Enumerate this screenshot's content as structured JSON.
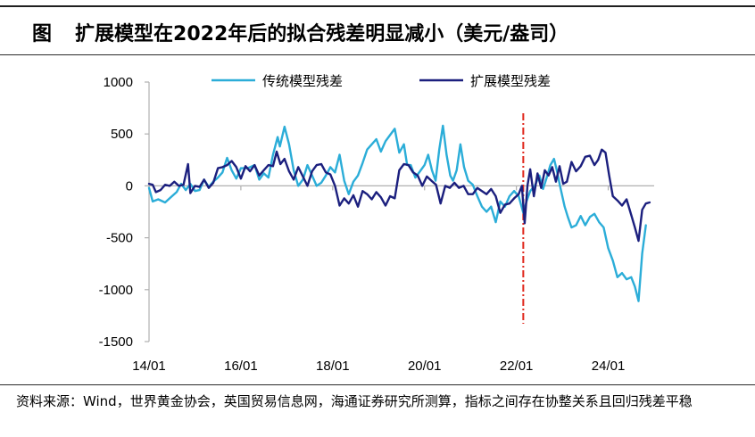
{
  "header": {
    "figure_label": "图",
    "title": "扩展模型在2022年后的拟合残差明显减小（美元/盎司）"
  },
  "footer": {
    "source": "资料来源：Wind，世界黄金协会，英国贸易信息网，海通证券研究所测算，指标之间存在协整关系且回归残差平稳"
  },
  "chart_data": {
    "type": "line",
    "title": "扩展模型在2022年后的拟合残差明显减小（美元/盎司）",
    "xlabel": "",
    "ylabel": "",
    "ylim": [
      -1500,
      1000
    ],
    "yticks": [
      1000,
      500,
      0,
      -500,
      -1000,
      -1500
    ],
    "xlim": [
      2014.0,
      2025.0
    ],
    "xticks": [
      {
        "x": 2014.0,
        "label": "14/01"
      },
      {
        "x": 2016.0,
        "label": "16/01"
      },
      {
        "x": 2018.0,
        "label": "18/01"
      },
      {
        "x": 2020.0,
        "label": "20/01"
      },
      {
        "x": 2022.0,
        "label": "22/01"
      },
      {
        "x": 2024.0,
        "label": "24/01"
      }
    ],
    "grid": false,
    "legend": "top",
    "reference_line": {
      "x": 2022.15,
      "style": "dash-dot",
      "color": "#e0261b"
    },
    "series": [
      {
        "name": "传统模型残差",
        "color": "#2badd8",
        "points": [
          [
            2014.0,
            -20
          ],
          [
            2014.08,
            -150
          ],
          [
            2014.2,
            -130
          ],
          [
            2014.35,
            -160
          ],
          [
            2014.5,
            -100
          ],
          [
            2014.6,
            -60
          ],
          [
            2014.7,
            20
          ],
          [
            2014.8,
            -40
          ],
          [
            2014.9,
            20
          ],
          [
            2015.0,
            -50
          ],
          [
            2015.1,
            -40
          ],
          [
            2015.2,
            60
          ],
          [
            2015.3,
            -10
          ],
          [
            2015.4,
            40
          ],
          [
            2015.5,
            80
          ],
          [
            2015.6,
            130
          ],
          [
            2015.7,
            270
          ],
          [
            2015.8,
            150
          ],
          [
            2015.9,
            70
          ],
          [
            2016.0,
            170
          ],
          [
            2016.15,
            170
          ],
          [
            2016.3,
            200
          ],
          [
            2016.4,
            60
          ],
          [
            2016.5,
            120
          ],
          [
            2016.6,
            80
          ],
          [
            2016.7,
            300
          ],
          [
            2016.8,
            470
          ],
          [
            2016.85,
            380
          ],
          [
            2016.95,
            570
          ],
          [
            2017.05,
            400
          ],
          [
            2017.15,
            150
          ],
          [
            2017.25,
            0
          ],
          [
            2017.35,
            60
          ],
          [
            2017.45,
            200
          ],
          [
            2017.55,
            100
          ],
          [
            2017.65,
            0
          ],
          [
            2017.75,
            30
          ],
          [
            2017.85,
            100
          ],
          [
            2017.95,
            180
          ],
          [
            2018.05,
            130
          ],
          [
            2018.15,
            300
          ],
          [
            2018.25,
            50
          ],
          [
            2018.35,
            -80
          ],
          [
            2018.45,
            40
          ],
          [
            2018.55,
            100
          ],
          [
            2018.65,
            220
          ],
          [
            2018.75,
            350
          ],
          [
            2018.85,
            400
          ],
          [
            2018.95,
            450
          ],
          [
            2019.05,
            330
          ],
          [
            2019.15,
            430
          ],
          [
            2019.25,
            490
          ],
          [
            2019.35,
            550
          ],
          [
            2019.45,
            320
          ],
          [
            2019.55,
            400
          ],
          [
            2019.62,
            200
          ],
          [
            2019.7,
            200
          ],
          [
            2019.8,
            80
          ],
          [
            2019.9,
            140
          ],
          [
            2020.0,
            200
          ],
          [
            2020.08,
            300
          ],
          [
            2020.16,
            150
          ],
          [
            2020.24,
            50
          ],
          [
            2020.32,
            350
          ],
          [
            2020.4,
            580
          ],
          [
            2020.48,
            300
          ],
          [
            2020.56,
            100
          ],
          [
            2020.62,
            50
          ],
          [
            2020.7,
            150
          ],
          [
            2020.78,
            400
          ],
          [
            2020.86,
            180
          ],
          [
            2020.95,
            50
          ],
          [
            2021.05,
            10
          ],
          [
            2021.15,
            -100
          ],
          [
            2021.25,
            -200
          ],
          [
            2021.35,
            -250
          ],
          [
            2021.45,
            -200
          ],
          [
            2021.55,
            -350
          ],
          [
            2021.65,
            -150
          ],
          [
            2021.75,
            -200
          ],
          [
            2021.85,
            -100
          ],
          [
            2021.95,
            -50
          ],
          [
            2022.05,
            -100
          ],
          [
            2022.15,
            -260
          ],
          [
            2022.22,
            -150
          ],
          [
            2022.3,
            -50
          ],
          [
            2022.4,
            0
          ],
          [
            2022.5,
            100
          ],
          [
            2022.58,
            -30
          ],
          [
            2022.66,
            80
          ],
          [
            2022.74,
            200
          ],
          [
            2022.82,
            260
          ],
          [
            2022.88,
            150
          ],
          [
            2022.95,
            0
          ],
          [
            2023.05,
            -200
          ],
          [
            2023.12,
            -300
          ],
          [
            2023.2,
            -400
          ],
          [
            2023.3,
            -380
          ],
          [
            2023.4,
            -290
          ],
          [
            2023.5,
            -380
          ],
          [
            2023.6,
            -300
          ],
          [
            2023.7,
            -270
          ],
          [
            2023.8,
            -350
          ],
          [
            2023.9,
            -400
          ],
          [
            2024.0,
            -600
          ],
          [
            2024.1,
            -720
          ],
          [
            2024.2,
            -880
          ],
          [
            2024.3,
            -840
          ],
          [
            2024.4,
            -900
          ],
          [
            2024.5,
            -880
          ],
          [
            2024.58,
            -970
          ],
          [
            2024.66,
            -1110
          ],
          [
            2024.74,
            -650
          ],
          [
            2024.82,
            -380
          ]
        ]
      },
      {
        "name": "扩展模型残差",
        "color": "#1b1f7e",
        "points": [
          [
            2014.0,
            20
          ],
          [
            2014.08,
            10
          ],
          [
            2014.15,
            -60
          ],
          [
            2014.25,
            -40
          ],
          [
            2014.35,
            10
          ],
          [
            2014.45,
            0
          ],
          [
            2014.55,
            40
          ],
          [
            2014.65,
            0
          ],
          [
            2014.75,
            10
          ],
          [
            2014.85,
            210
          ],
          [
            2014.9,
            -70
          ],
          [
            2015.0,
            0
          ],
          [
            2015.1,
            -10
          ],
          [
            2015.2,
            60
          ],
          [
            2015.3,
            -20
          ],
          [
            2015.4,
            30
          ],
          [
            2015.5,
            170
          ],
          [
            2015.6,
            180
          ],
          [
            2015.7,
            200
          ],
          [
            2015.8,
            240
          ],
          [
            2015.9,
            180
          ],
          [
            2016.0,
            70
          ],
          [
            2016.1,
            190
          ],
          [
            2016.2,
            140
          ],
          [
            2016.3,
            200
          ],
          [
            2016.4,
            100
          ],
          [
            2016.5,
            150
          ],
          [
            2016.6,
            200
          ],
          [
            2016.7,
            190
          ],
          [
            2016.78,
            330
          ],
          [
            2016.86,
            210
          ],
          [
            2016.95,
            260
          ],
          [
            2017.05,
            140
          ],
          [
            2017.15,
            60
          ],
          [
            2017.25,
            180
          ],
          [
            2017.35,
            90
          ],
          [
            2017.45,
            0
          ],
          [
            2017.55,
            140
          ],
          [
            2017.65,
            200
          ],
          [
            2017.75,
            210
          ],
          [
            2017.85,
            130
          ],
          [
            2017.95,
            110
          ],
          [
            2018.05,
            0
          ],
          [
            2018.15,
            -190
          ],
          [
            2018.25,
            -120
          ],
          [
            2018.35,
            -170
          ],
          [
            2018.45,
            -90
          ],
          [
            2018.55,
            -200
          ],
          [
            2018.65,
            -50
          ],
          [
            2018.75,
            -80
          ],
          [
            2018.85,
            -130
          ],
          [
            2018.95,
            -60
          ],
          [
            2019.05,
            -110
          ],
          [
            2019.15,
            -190
          ],
          [
            2019.25,
            -100
          ],
          [
            2019.35,
            -120
          ],
          [
            2019.45,
            150
          ],
          [
            2019.55,
            210
          ],
          [
            2019.65,
            200
          ],
          [
            2019.75,
            130
          ],
          [
            2019.85,
            100
          ],
          [
            2019.95,
            0
          ],
          [
            2020.05,
            90
          ],
          [
            2020.15,
            50
          ],
          [
            2020.25,
            10
          ],
          [
            2020.35,
            -170
          ],
          [
            2020.45,
            0
          ],
          [
            2020.55,
            -20
          ],
          [
            2020.65,
            30
          ],
          [
            2020.75,
            -20
          ],
          [
            2020.85,
            0
          ],
          [
            2020.95,
            -80
          ],
          [
            2021.05,
            -80
          ],
          [
            2021.15,
            -20
          ],
          [
            2021.25,
            -50
          ],
          [
            2021.35,
            -80
          ],
          [
            2021.45,
            -30
          ],
          [
            2021.55,
            -100
          ],
          [
            2021.65,
            -260
          ],
          [
            2021.75,
            -180
          ],
          [
            2021.85,
            -170
          ],
          [
            2021.95,
            -120
          ],
          [
            2022.05,
            -80
          ],
          [
            2022.12,
            0
          ],
          [
            2022.18,
            -360
          ],
          [
            2022.24,
            0
          ],
          [
            2022.3,
            160
          ],
          [
            2022.38,
            -100
          ],
          [
            2022.46,
            120
          ],
          [
            2022.54,
            -20
          ],
          [
            2022.62,
            150
          ],
          [
            2022.7,
            100
          ],
          [
            2022.78,
            180
          ],
          [
            2022.86,
            40
          ],
          [
            2022.94,
            190
          ],
          [
            2023.02,
            20
          ],
          [
            2023.1,
            40
          ],
          [
            2023.2,
            230
          ],
          [
            2023.3,
            140
          ],
          [
            2023.4,
            190
          ],
          [
            2023.5,
            280
          ],
          [
            2023.6,
            290
          ],
          [
            2023.7,
            200
          ],
          [
            2023.78,
            250
          ],
          [
            2023.86,
            350
          ],
          [
            2023.94,
            320
          ],
          [
            2024.02,
            100
          ],
          [
            2024.1,
            -100
          ],
          [
            2024.2,
            -140
          ],
          [
            2024.3,
            -190
          ],
          [
            2024.4,
            -130
          ],
          [
            2024.5,
            -280
          ],
          [
            2024.58,
            -400
          ],
          [
            2024.66,
            -530
          ],
          [
            2024.74,
            -230
          ],
          [
            2024.82,
            -170
          ],
          [
            2024.9,
            -160
          ]
        ]
      }
    ]
  }
}
